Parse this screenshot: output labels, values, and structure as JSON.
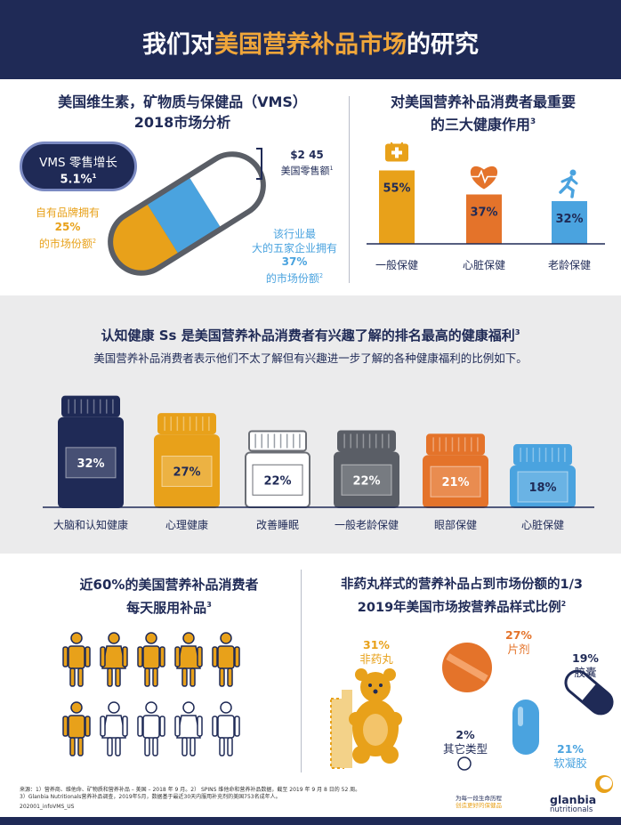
{
  "header": {
    "title_prefix": "我们对",
    "title_highlight": "美国营养补品市场",
    "title_suffix": "的研究"
  },
  "vms": {
    "title_line1": "美国维生素，矿物质与保健品（VMS）",
    "title_line2": "2018市场分析",
    "badge_label": "VMS 零售增长",
    "badge_value": "5.1%",
    "badge_sup": "1",
    "private_label_line1": "自有品牌拥有",
    "private_label_value": "25%",
    "private_label_line3": "的市场份额",
    "private_label_sup": "2",
    "retail_value": "$2 45",
    "retail_label": "美国零售额",
    "retail_sup": "1",
    "top5_line1": "该行业最",
    "top5_line2": "大的五家企业拥有",
    "top5_value": "37%",
    "top5_line4": "的市场份额",
    "top5_sup": "2"
  },
  "benefits": {
    "title_line1": "对美国营养补品消费者最重要",
    "title_line2": "的三大健康作用",
    "title_sup": "3"
  },
  "cognitive": {
    "title": "认知健康 Ss 是美国营养补品消费者有兴趣了解的排名最高的健康福利",
    "title_sup": "3",
    "subtitle": "美国营养补品消费者表示他们不太了解但有兴趣进一步了解的各种健康福利的比例如下。"
  },
  "daily": {
    "title_line1": "近60%的美国营养补品消费者",
    "title_line2": "每天服用补品",
    "title_sup": "3"
  },
  "forms": {
    "title_line1": "非药丸样式的营养补品占到市场份额的1/3",
    "title_line2": "2019年美国市场按营养品样式比例",
    "title_sup": "2"
  },
  "chart_data": [
    {
      "type": "bar",
      "title": "对美国营养补品消费者最重要的三大健康作用",
      "categories": [
        "一般保健",
        "心脏保健",
        "老龄保健"
      ],
      "values": [
        55,
        37,
        32
      ],
      "value_labels": [
        "55%",
        "37%",
        "32%"
      ],
      "colors": [
        "#e8a11a",
        "#e4732a",
        "#4aa3df"
      ],
      "icons": [
        "medical-kit-icon",
        "heart-pulse-icon",
        "running-person-icon"
      ]
    },
    {
      "type": "bar",
      "title": "认知健康 Ss 是美国营养补品消费者有兴趣了解的排名最高的健康福利",
      "categories": [
        "大脑和认知健康",
        "心理健康",
        "改善睡眠",
        "一般老龄保健",
        "眼部保健",
        "心脏保健"
      ],
      "values": [
        32,
        27,
        22,
        22,
        21,
        18
      ],
      "value_labels": [
        "32%",
        "27%",
        "22%",
        "22%",
        "21%",
        "18%"
      ],
      "colors": [
        "#1f2a56",
        "#e8a11a",
        "#ffffff",
        "#5a5e66",
        "#e4732a",
        "#4aa3df"
      ],
      "value_colors": [
        "#ffffff",
        "#1f2a56",
        "#1f2a56",
        "#ffffff",
        "#ffffff",
        "#1f2a56"
      ]
    },
    {
      "type": "pie",
      "title": "2019年美国市场按营养品样式比例",
      "categories": [
        "非药丸",
        "片剂",
        "胶囊",
        "软凝胶",
        "其它类型"
      ],
      "values": [
        31,
        27,
        19,
        21,
        2
      ],
      "value_labels": [
        "31%",
        "27%",
        "19%",
        "21%",
        "2%"
      ],
      "colors": [
        "#e8a11a",
        "#e4732a",
        "#1f2a56",
        "#4aa3df",
        "#1f2a56"
      ]
    },
    {
      "type": "pictogram",
      "title": "近60%的美国营养补品消费者每天服用补品",
      "total": 10,
      "filled": 6,
      "colors": [
        "#e8a11a",
        "#ffffff"
      ]
    }
  ],
  "footer": {
    "source_line1": "来源：1）营养商、维他命、矿物质和营养补品 – 美国 – 2018 年 9 月。2） SPINS 维他命和营养补品数据，截至 2019 年 9 月 8 日的 52 周。",
    "source_line2": "3）Glanbia Nutritionals营养补品调查，2019年5月，数据基于最近30天内服用补充剂的美国753名成年人。",
    "code": "202001_infoVMS_US",
    "tagline_line1": "为每一段生命历程",
    "tagline_line2": "创造更好的保健品",
    "brand_line1": "glanbia",
    "brand_line2": "nutritionals"
  }
}
